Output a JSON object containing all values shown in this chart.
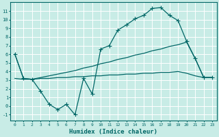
{
  "xlabel": "Humidex (Indice chaleur)",
  "bg_color": "#c8ece6",
  "line_color": "#006666",
  "grid_color": "#ffffff",
  "xlim": [
    -0.5,
    23.5
  ],
  "ylim": [
    -1.7,
    12.0
  ],
  "xticks": [
    0,
    1,
    2,
    3,
    4,
    5,
    6,
    7,
    8,
    9,
    10,
    11,
    12,
    13,
    14,
    15,
    16,
    17,
    18,
    19,
    20,
    21,
    22,
    23
  ],
  "yticks": [
    -1,
    0,
    1,
    2,
    3,
    4,
    5,
    6,
    7,
    8,
    9,
    10,
    11
  ],
  "line1_x": [
    0,
    1,
    2,
    3,
    4,
    5,
    6,
    7,
    8,
    9,
    10,
    11,
    12,
    13,
    14,
    15,
    16,
    17,
    18,
    19,
    20,
    21,
    22,
    23
  ],
  "line1_y": [
    6.0,
    3.2,
    3.1,
    1.7,
    0.2,
    -0.4,
    0.2,
    -1.0,
    3.2,
    1.4,
    6.6,
    7.0,
    8.8,
    9.4,
    10.1,
    10.5,
    11.3,
    11.4,
    10.5,
    9.9,
    7.5,
    5.5,
    3.3,
    3.3
  ],
  "line2_x": [
    0,
    1,
    2,
    3,
    4,
    5,
    6,
    7,
    8,
    9,
    10,
    11,
    12,
    13,
    14,
    15,
    16,
    17,
    18,
    19,
    20,
    21,
    22,
    23
  ],
  "line2_y": [
    6.0,
    3.2,
    3.1,
    3.3,
    3.5,
    3.7,
    3.9,
    4.1,
    4.4,
    4.6,
    4.9,
    5.1,
    5.4,
    5.6,
    5.9,
    6.1,
    6.4,
    6.6,
    6.9,
    7.1,
    7.4,
    5.5,
    3.3,
    3.3
  ],
  "line3_x": [
    0,
    1,
    2,
    3,
    4,
    5,
    6,
    7,
    8,
    9,
    10,
    11,
    12,
    13,
    14,
    15,
    16,
    17,
    18,
    19,
    20,
    21,
    22,
    23
  ],
  "line3_y": [
    3.2,
    3.1,
    3.1,
    3.2,
    3.2,
    3.3,
    3.3,
    3.4,
    3.4,
    3.5,
    3.5,
    3.6,
    3.6,
    3.7,
    3.7,
    3.8,
    3.8,
    3.9,
    3.9,
    4.0,
    3.8,
    3.5,
    3.3,
    3.3
  ]
}
